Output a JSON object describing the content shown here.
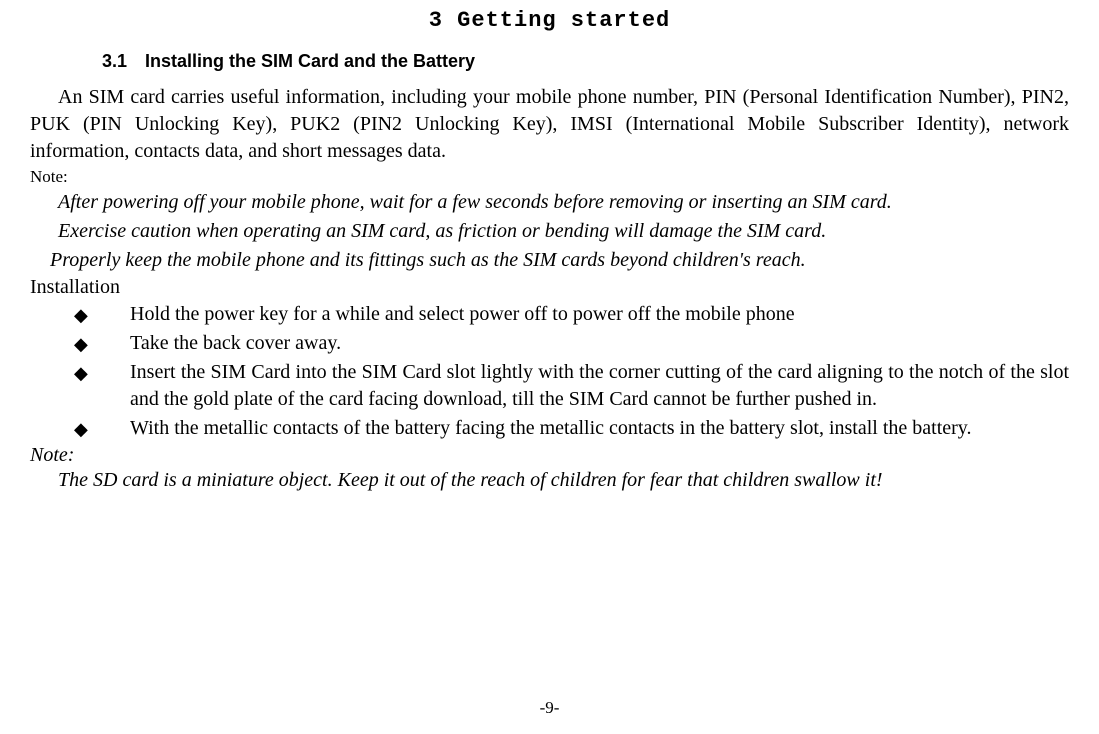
{
  "chapter_title": "3 Getting started",
  "section_heading": "3.1 Installing the SIM Card and the Battery",
  "intro_paragraph": "An SIM card carries useful information, including your mobile phone number, PIN (Personal Identification Number), PIN2, PUK (PIN Unlocking Key), PUK2 (PIN2 Unlocking Key), IMSI (International Mobile Subscriber Identity), network information, contacts data, and short messages data.",
  "note_label": "Note:",
  "note_lines": [
    "After powering off your mobile phone, wait for a few seconds before removing or inserting an SIM card.",
    "Exercise caution when operating an SIM card, as friction or bending will damage the SIM card.",
    "Properly keep the mobile phone and its fittings such as the SIM cards beyond children's reach."
  ],
  "installation_label": "Installation",
  "bullets": [
    "Hold the power key for a while and select power off to power off the mobile phone",
    "Take the back cover away.",
    "Insert the SIM Card into the SIM Card slot lightly with the corner cutting of the card aligning to the notch of the slot and the gold plate of the card facing download, till the SIM Card cannot be further pushed in.",
    "With the metallic contacts of the battery facing the metallic contacts in the battery slot, install the battery."
  ],
  "note2_label": "Note:",
  "note2_line": "The SD card is a miniature object. Keep it out of the reach of children for fear that children swallow it!",
  "page_number": "-9-",
  "bullet_glyph": "◆",
  "colors": {
    "text": "#000000",
    "background": "#ffffff"
  }
}
